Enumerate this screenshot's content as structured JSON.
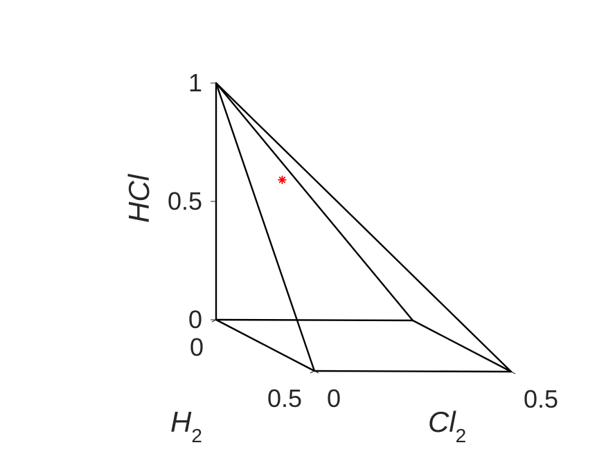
{
  "chart_data": {
    "type": "scatter",
    "view": "3d",
    "axes": {
      "x": {
        "label": "H",
        "label_subscript": "2",
        "range": [
          0,
          0.5
        ],
        "ticks": [
          0,
          0.5
        ],
        "tick_labels": [
          "0",
          "0.5"
        ]
      },
      "y": {
        "label": "Cl",
        "label_subscript": "2",
        "range": [
          0,
          0.5
        ],
        "ticks": [
          0,
          0.5
        ],
        "tick_labels": [
          "0",
          "0.5"
        ]
      },
      "z": {
        "label": "HCl",
        "range": [
          0,
          1
        ],
        "ticks": [
          0,
          0.5,
          1
        ],
        "tick_labels": [
          "0",
          "0.5",
          "1"
        ]
      }
    },
    "vertices": {
      "O": [
        0,
        0,
        0
      ],
      "A": [
        0.5,
        0,
        0
      ],
      "B": [
        0,
        0.5,
        0
      ],
      "C": [
        0.5,
        0.5,
        0
      ],
      "T": [
        0,
        0,
        1
      ]
    },
    "edges": [
      [
        "O",
        "A"
      ],
      [
        "A",
        "C"
      ],
      [
        "C",
        "B"
      ],
      [
        "B",
        "O"
      ],
      [
        "T",
        "O"
      ],
      [
        "T",
        "A"
      ],
      [
        "T",
        "B"
      ],
      [
        "T",
        "C"
      ]
    ],
    "points": [
      {
        "x": 0,
        "y": 0.168,
        "z": 0.592
      }
    ],
    "edge_color": "#000000",
    "point_color": "#ff0000",
    "grid": false
  }
}
